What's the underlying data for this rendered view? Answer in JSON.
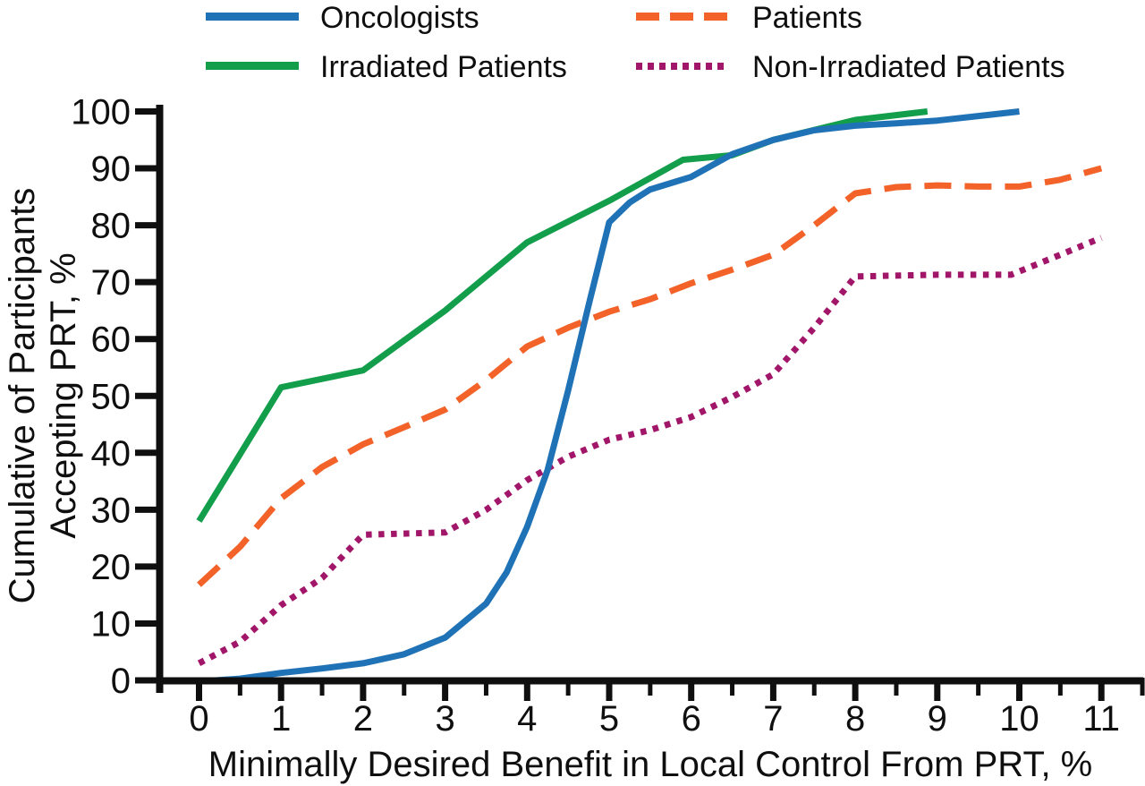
{
  "legend": {
    "items": [
      {
        "label": "Oncologists",
        "color": "#2072B6",
        "style": "solid"
      },
      {
        "label": "Patients",
        "color": "#F26229",
        "style": "dashed"
      },
      {
        "label": "Irradiated Patients",
        "color": "#129E4B",
        "style": "solid"
      },
      {
        "label": "Non-Irradiated Patients",
        "color": "#A21669",
        "style": "dotted"
      }
    ]
  },
  "chart_data": {
    "type": "line",
    "title": "",
    "xlabel": "Minimally Desired Benefit in Local Control From PRT, %",
    "ylabel_line1": "Cumulative of Participants",
    "ylabel_line2": "Accepting PRT, %",
    "xlim": [
      0,
      11.5
    ],
    "ylim": [
      0,
      100
    ],
    "grid": false,
    "legend_position": "top",
    "x_ticks": [
      0,
      1,
      2,
      3,
      4,
      5,
      6,
      7,
      8,
      9,
      10,
      11
    ],
    "x_minor_ticks": [
      0.5,
      1.5,
      2.5,
      3.5,
      4.5,
      5.5,
      6.5,
      7.5,
      8.5,
      9.5,
      10.5,
      11.5
    ],
    "y_ticks": [
      0,
      10,
      20,
      30,
      40,
      50,
      60,
      70,
      80,
      90,
      100
    ],
    "series": [
      {
        "name": "Patients",
        "color": "#F26229",
        "style": "dashed",
        "points": [
          [
            0,
            16.8
          ],
          [
            0.5,
            23.5
          ],
          [
            1,
            32
          ],
          [
            1.5,
            37.5
          ],
          [
            2,
            41.5
          ],
          [
            2.5,
            44.5
          ],
          [
            3,
            47.6
          ],
          [
            3.5,
            52.8
          ],
          [
            4,
            58.7
          ],
          [
            4.5,
            62
          ],
          [
            5,
            64.8
          ],
          [
            5.5,
            67
          ],
          [
            6,
            69.8
          ],
          [
            6.5,
            72.2
          ],
          [
            7,
            74.8
          ],
          [
            7.5,
            80
          ],
          [
            8,
            85.6
          ],
          [
            8.5,
            86.7
          ],
          [
            9,
            87
          ],
          [
            9.5,
            86.8
          ],
          [
            10,
            86.8
          ],
          [
            10.5,
            88
          ],
          [
            11,
            90
          ]
        ]
      },
      {
        "name": "Non-Irradiated Patients",
        "color": "#A21669",
        "style": "dotted",
        "points": [
          [
            0,
            3
          ],
          [
            0.5,
            6.8
          ],
          [
            1,
            13.2
          ],
          [
            1.5,
            18
          ],
          [
            2,
            25.6
          ],
          [
            3,
            26
          ],
          [
            3.5,
            30
          ],
          [
            4,
            35.2
          ],
          [
            4.5,
            39.3
          ],
          [
            5,
            42.3
          ],
          [
            5.5,
            44
          ],
          [
            6,
            46.3
          ],
          [
            6.5,
            49.8
          ],
          [
            7,
            53.8
          ],
          [
            7.5,
            62
          ],
          [
            8,
            71
          ],
          [
            9,
            71.3
          ],
          [
            9.9,
            71.3
          ],
          [
            10.5,
            74.8
          ],
          [
            11,
            77.8
          ]
        ]
      },
      {
        "name": "Irradiated Patients",
        "color": "#129E4B",
        "style": "solid",
        "points": [
          [
            0,
            28
          ],
          [
            1,
            51.5
          ],
          [
            2,
            54.5
          ],
          [
            3,
            65
          ],
          [
            4,
            77
          ],
          [
            5,
            84.3
          ],
          [
            5.9,
            91.5
          ],
          [
            6.5,
            92.3
          ],
          [
            7,
            95
          ],
          [
            8,
            98.5
          ],
          [
            8.88,
            100
          ]
        ]
      },
      {
        "name": "Oncologists",
        "color": "#2072B6",
        "style": "solid",
        "points": [
          [
            0.2,
            0
          ],
          [
            0.5,
            0.3
          ],
          [
            1,
            1.3
          ],
          [
            1.5,
            2.1
          ],
          [
            2,
            3
          ],
          [
            2.5,
            4.6
          ],
          [
            3,
            7.5
          ],
          [
            3.5,
            13.5
          ],
          [
            3.75,
            19
          ],
          [
            4,
            27
          ],
          [
            4.25,
            37
          ],
          [
            4.5,
            51
          ],
          [
            4.75,
            66
          ],
          [
            5,
            80.5
          ],
          [
            5.25,
            84
          ],
          [
            5.5,
            86.3
          ],
          [
            6,
            88.5
          ],
          [
            6.5,
            92.5
          ],
          [
            7,
            95
          ],
          [
            7.5,
            96.7
          ],
          [
            8,
            97.5
          ],
          [
            8.5,
            97.9
          ],
          [
            9,
            98.4
          ],
          [
            9.5,
            99.2
          ],
          [
            10,
            100
          ]
        ]
      }
    ]
  }
}
